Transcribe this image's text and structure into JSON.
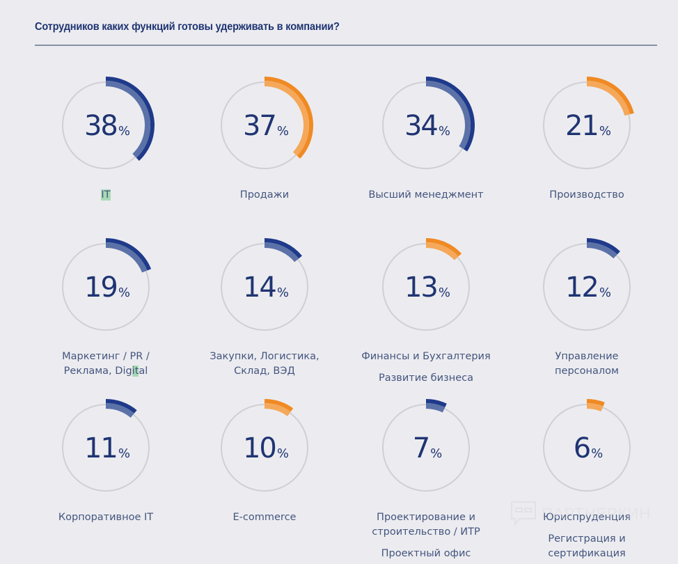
{
  "header": {
    "title": "Сотрудников каких функций готовы удерживать в компании?"
  },
  "colors": {
    "blue": "#1f3a8a",
    "blue_light": "#5b72a8",
    "orange": "#f08a24",
    "orange_light": "#f5a85a",
    "track": "#cfcfd4",
    "text": "#1f3472"
  },
  "watermark": {
    "text": "ПАРТНЕРКИН",
    "icon": "chat-bubble-icon"
  },
  "chart_data": {
    "type": "donut-grid",
    "title": "Сотрудников каких функций готовы удерживать в компании?",
    "unit": "%",
    "max": 100,
    "items": [
      {
        "label": "IT",
        "value": 38,
        "color": "blue",
        "highlight": "IT"
      },
      {
        "label": "Продажи",
        "value": 37,
        "color": "orange"
      },
      {
        "label": "Высший менеджмент",
        "value": 34,
        "color": "blue"
      },
      {
        "label": "Производство",
        "value": 21,
        "color": "orange"
      },
      {
        "label": "Маркетинг / PR / Реклама, Digital",
        "value": 19,
        "color": "blue"
      },
      {
        "label": "Закупки, Логистика, Склад, ВЭД",
        "value": 14,
        "color": "blue"
      },
      {
        "label": "Финансы и Бухгалтерия",
        "extra": "Развитие бизнеса",
        "value": 13,
        "color": "orange"
      },
      {
        "label": "Управление персоналом",
        "value": 12,
        "color": "blue"
      },
      {
        "label": "Корпоративное IT",
        "value": 11,
        "color": "blue"
      },
      {
        "label": "E-commerce",
        "value": 10,
        "color": "orange"
      },
      {
        "label": "Проектирование и строительство / ИТР",
        "extra": "Проектный офис",
        "value": 7,
        "color": "blue"
      },
      {
        "label": "Юриспруденция",
        "extra": "Регистрация и сертификация",
        "value": 6,
        "color": "orange"
      }
    ]
  }
}
